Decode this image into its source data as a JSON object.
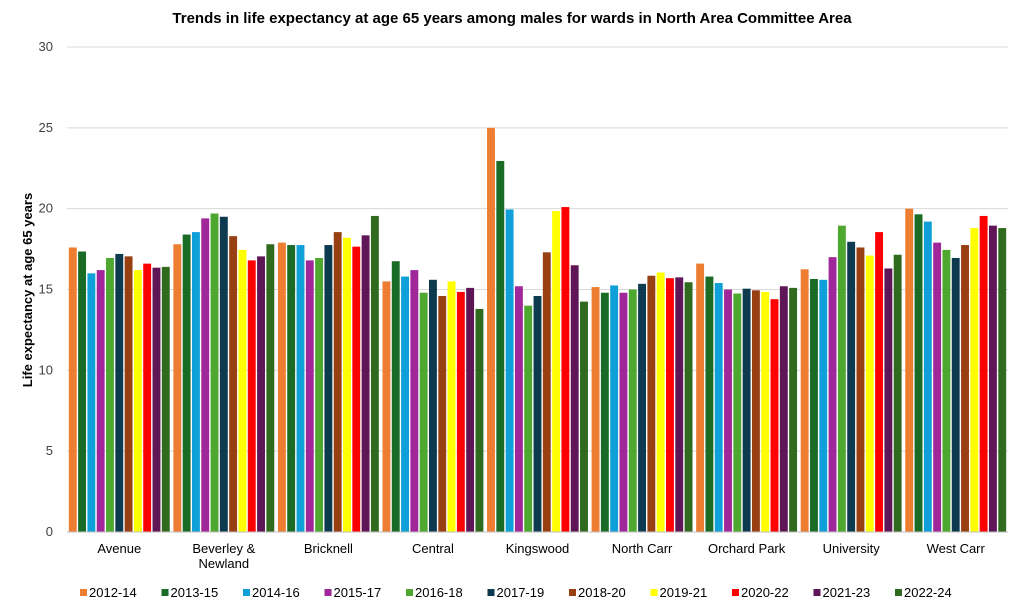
{
  "chart_data": {
    "type": "bar",
    "title": "Trends in life expectancy at  age 65 years among males for wards in North Area Committee Area",
    "xlabel": "",
    "ylabel": "Life expectancy at  age 65 years",
    "ylim": [
      0,
      30
    ],
    "yticks": [
      "0",
      "5",
      "10",
      "15",
      "20",
      "25",
      "30"
    ],
    "grid": true,
    "legend_position": "bottom",
    "categories": [
      "Avenue",
      "Beverley & Newland",
      "Bricknell",
      "Central",
      "Kingswood",
      "North Carr",
      "Orchard Park",
      "University",
      "West Carr"
    ],
    "series": [
      {
        "name": "2012-14",
        "color": "#ED7D31",
        "values": [
          17.6,
          17.8,
          17.9,
          15.5,
          25.0,
          15.15,
          16.6,
          16.25,
          20.0
        ]
      },
      {
        "name": "2013-15",
        "color": "#1A6B25",
        "values": [
          17.35,
          18.4,
          17.75,
          16.75,
          22.95,
          14.8,
          15.8,
          15.65,
          19.65
        ]
      },
      {
        "name": "2014-16",
        "color": "#0FA0DA",
        "values": [
          16.0,
          18.55,
          17.75,
          15.8,
          19.95,
          15.25,
          15.4,
          15.6,
          19.2
        ]
      },
      {
        "name": "2015-17",
        "color": "#A0279A",
        "values": [
          16.2,
          19.4,
          16.8,
          16.2,
          15.2,
          14.8,
          15.0,
          17.0,
          17.9
        ]
      },
      {
        "name": "2016-18",
        "color": "#4EA72E",
        "values": [
          16.95,
          19.7,
          16.95,
          14.8,
          14.0,
          15.0,
          14.75,
          18.95,
          17.45
        ]
      },
      {
        "name": "2017-19",
        "color": "#0E3A50",
        "values": [
          17.2,
          19.5,
          17.75,
          15.6,
          14.6,
          15.35,
          15.05,
          17.95,
          16.95
        ]
      },
      {
        "name": "2018-20",
        "color": "#984012",
        "values": [
          17.05,
          18.3,
          18.55,
          14.6,
          17.3,
          15.85,
          14.95,
          17.6,
          17.75
        ]
      },
      {
        "name": "2019-21",
        "color": "#FFFF00",
        "values": [
          16.2,
          17.45,
          18.2,
          15.5,
          19.85,
          16.05,
          14.85,
          17.1,
          18.8
        ]
      },
      {
        "name": "2020-22",
        "color": "#FF0000",
        "values": [
          16.6,
          16.8,
          17.65,
          14.85,
          20.1,
          15.7,
          14.4,
          18.55,
          19.55
        ]
      },
      {
        "name": "2021-23",
        "color": "#5E1656",
        "values": [
          16.35,
          17.05,
          18.35,
          15.1,
          16.5,
          15.75,
          15.2,
          16.3,
          18.95
        ]
      },
      {
        "name": "2022-24",
        "color": "#2F6A1E",
        "values": [
          16.4,
          17.8,
          19.55,
          13.8,
          14.25,
          15.45,
          15.1,
          17.15,
          18.8
        ]
      }
    ]
  }
}
